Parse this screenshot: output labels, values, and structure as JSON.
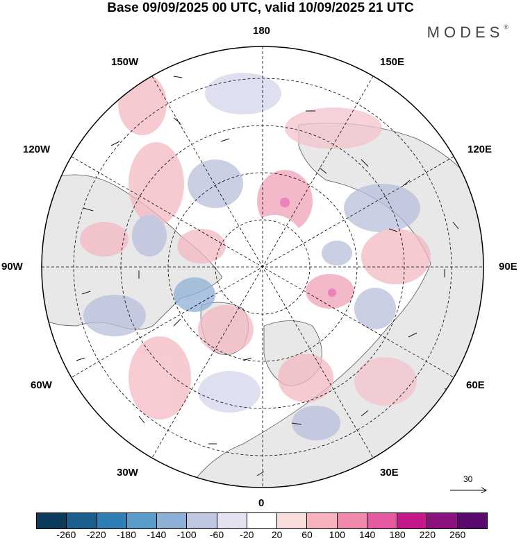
{
  "title": "Base 09/09/2025 00 UTC, valid 10/09/2025 21 UTC",
  "brand": "MODES",
  "brand_mark": "®",
  "longitude_labels": {
    "north": "180",
    "south": "0",
    "west": "90W",
    "east": "90E",
    "nw_150": "150W",
    "nw_120": "120W",
    "ne_150": "150E",
    "ne_120": "120E",
    "sw_60": "60W",
    "sw_30": "30W",
    "se_60": "60E",
    "se_30": "30E"
  },
  "reference_vector": {
    "label": "30"
  },
  "colorbar": {
    "colors": [
      "#0d3b5e",
      "#1b5f8f",
      "#2f7fb6",
      "#5b9cc9",
      "#8fb0d6",
      "#bfc6e0",
      "#e4e2f0",
      "#ffffff",
      "#fbdcdc",
      "#f7b2bd",
      "#f08aab",
      "#e45aa0",
      "#c4198a",
      "#8c1280",
      "#5a0a6e"
    ],
    "tick_labels": [
      "-260",
      "-220",
      "-180",
      "-140",
      "-100",
      "-60",
      "-20",
      "20",
      "60",
      "100",
      "140",
      "180",
      "220",
      "260"
    ]
  },
  "colors": {
    "land": "#e8e8e8",
    "ocean": "#ffffff",
    "coast": "#555555",
    "grid": "#000000",
    "positive": "#f4b9c2",
    "negative": "#b9bfdc"
  }
}
